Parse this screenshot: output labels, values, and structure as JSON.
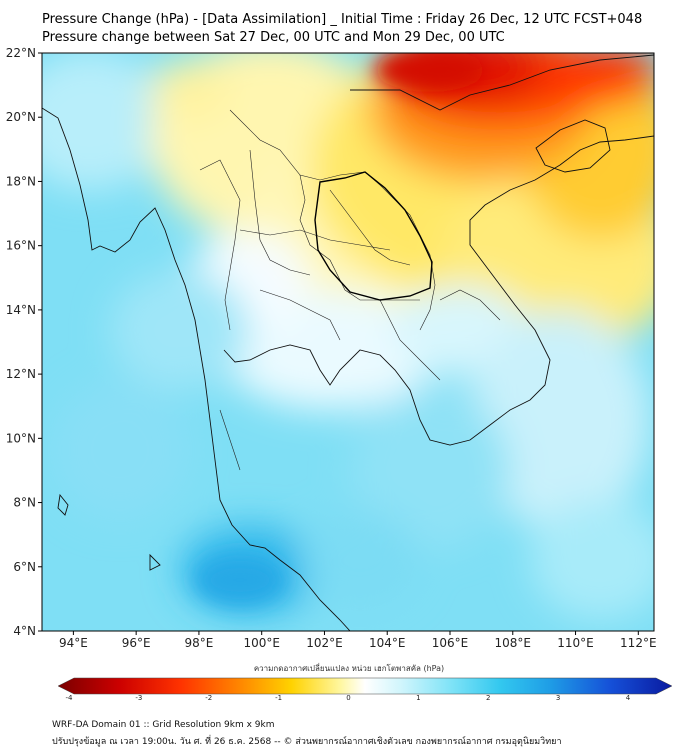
{
  "header": {
    "title_line1": "Pressure Change (hPa) - [Data Assimilation] _ Initial Time : Friday 26 Dec, 12 UTC FCST+048",
    "title_line2": "Pressure change between Sat 27 Dec, 00 UTC and Mon 29 Dec, 00 UTC"
  },
  "map": {
    "lon_range": [
      93,
      112.5
    ],
    "lat_range": [
      4,
      22
    ],
    "lon_ticks": [
      "94°E",
      "96°E",
      "98°E",
      "100°E",
      "102°E",
      "104°E",
      "106°E",
      "108°E",
      "110°E",
      "112°E"
    ],
    "lat_ticks": [
      "4°N",
      "6°N",
      "8°N",
      "10°N",
      "12°N",
      "14°N",
      "16°N",
      "18°N",
      "20°N",
      "22°N"
    ],
    "field_description_colors": {
      "strong_rise": "#cc0000",
      "rise": "#ff8800",
      "slight_rise": "#ffee33",
      "neutral": "#ffffff",
      "slight_fall": "#bff0fb",
      "fall": "#5ad8f3",
      "strong_fall": "#1aa8e0"
    }
  },
  "colorbar": {
    "title": "ความกดอากาศเปลี่ยนแปลง หน่วย เฮกโตพาสคัล (hPa)",
    "ticks": [
      "-4",
      "-3",
      "-2",
      "-1",
      "0",
      "1",
      "2",
      "3",
      "4"
    ],
    "range": [
      -4,
      4
    ]
  },
  "footer": {
    "line1": "WRF-DA Domain 01 :: Grid Resolution 9km x 9km",
    "line2": "ปรับปรุงข้อมูล ณ เวลา 19:00น. วัน ศ. ที่ 26 ธ.ค. 2568 -- © ส่วนพยากรณ์อากาศเชิงตัวเลข กองพยากรณ์อากาศ กรมอุตุนิยมวิทยา"
  }
}
